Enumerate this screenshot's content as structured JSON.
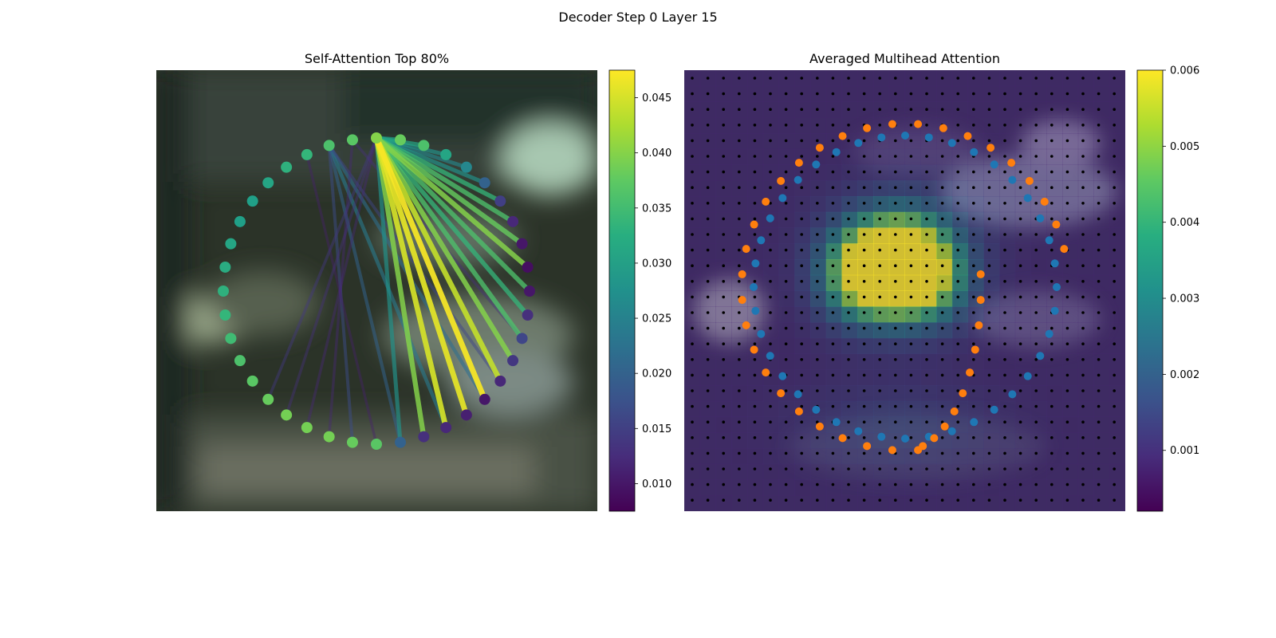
{
  "figure": {
    "suptitle": "Decoder Step 0 Layer 15"
  },
  "chart_data": [
    {
      "type": "network",
      "title": "Self-Attention Top 80%",
      "node_count": 40,
      "source_node": 0,
      "colormap": "viridis",
      "colorbar": {
        "range": [
          0.0075,
          0.0475
        ],
        "ticks": [
          0.01,
          0.015,
          0.02,
          0.025,
          0.03,
          0.035,
          0.04,
          0.045
        ],
        "tick_labels": [
          "0.010",
          "0.015",
          "0.020",
          "0.025",
          "0.030",
          "0.035",
          "0.040",
          "0.045"
        ]
      },
      "node_values": [
        0.04,
        0.038,
        0.036,
        0.031,
        0.026,
        0.02,
        0.015,
        0.012,
        0.01,
        0.009,
        0.01,
        0.013,
        0.016,
        0.014,
        0.012,
        0.01,
        0.011,
        0.012,
        0.013,
        0.02,
        0.037,
        0.038,
        0.039,
        0.039,
        0.039,
        0.038,
        0.037,
        0.036,
        0.035,
        0.034,
        0.033,
        0.032,
        0.031,
        0.03,
        0.03,
        0.031,
        0.033,
        0.034,
        0.036,
        0.037
      ],
      "edges_from_source": [
        {
          "to": 1,
          "weight": 0.03
        },
        {
          "to": 2,
          "weight": 0.031
        },
        {
          "to": 3,
          "weight": 0.028
        },
        {
          "to": 4,
          "weight": 0.026
        },
        {
          "to": 5,
          "weight": 0.028
        },
        {
          "to": 6,
          "weight": 0.034
        },
        {
          "to": 7,
          "weight": 0.036
        },
        {
          "to": 8,
          "weight": 0.038
        },
        {
          "to": 9,
          "weight": 0.04
        },
        {
          "to": 10,
          "weight": 0.036
        },
        {
          "to": 11,
          "weight": 0.034
        },
        {
          "to": 12,
          "weight": 0.036
        },
        {
          "to": 13,
          "weight": 0.04
        },
        {
          "to": 14,
          "weight": 0.044
        },
        {
          "to": 15,
          "weight": 0.047
        },
        {
          "to": 16,
          "weight": 0.046
        },
        {
          "to": 17,
          "weight": 0.045
        },
        {
          "to": 18,
          "weight": 0.04
        },
        {
          "to": 19,
          "weight": 0.028
        },
        {
          "to": 23,
          "weight": 0.012
        },
        {
          "to": 24,
          "weight": 0.013
        },
        {
          "to": 25,
          "weight": 0.014
        }
      ],
      "secondary_edges": [
        {
          "from": 38,
          "to": 17,
          "weight": 0.024
        },
        {
          "from": 38,
          "to": 15,
          "weight": 0.022
        },
        {
          "from": 38,
          "to": 19,
          "weight": 0.02
        },
        {
          "from": 38,
          "to": 21,
          "weight": 0.017
        },
        {
          "from": 38,
          "to": 14,
          "weight": 0.016
        },
        {
          "from": 39,
          "to": 12,
          "weight": 0.013
        },
        {
          "from": 39,
          "to": 22,
          "weight": 0.012
        },
        {
          "from": 37,
          "to": 20,
          "weight": 0.011
        }
      ]
    },
    {
      "type": "heatmap",
      "title": "Averaged Multihead Attention",
      "colormap": "viridis",
      "grid": {
        "rows": 28,
        "cols": 28
      },
      "colorbar": {
        "range": [
          0.0002,
          0.006
        ],
        "ticks": [
          0.001,
          0.002,
          0.003,
          0.004,
          0.005,
          0.006
        ],
        "tick_labels": [
          "0.001",
          "0.002",
          "0.003",
          "0.004",
          "0.005",
          "0.006"
        ]
      },
      "hotspots": [
        {
          "row": 12,
          "col": 11,
          "value": 0.0056
        },
        {
          "row": 13,
          "col": 11,
          "value": 0.0054
        },
        {
          "row": 12,
          "col": 14,
          "value": 0.0058
        },
        {
          "row": 13,
          "col": 15,
          "value": 0.0056
        },
        {
          "row": 11,
          "col": 13,
          "value": 0.0045
        }
      ],
      "scatter_series": [
        {
          "color": "#1f77b4",
          "point_count": 40
        },
        {
          "color": "#ff7f0e",
          "point_count": 40
        }
      ]
    }
  ]
}
